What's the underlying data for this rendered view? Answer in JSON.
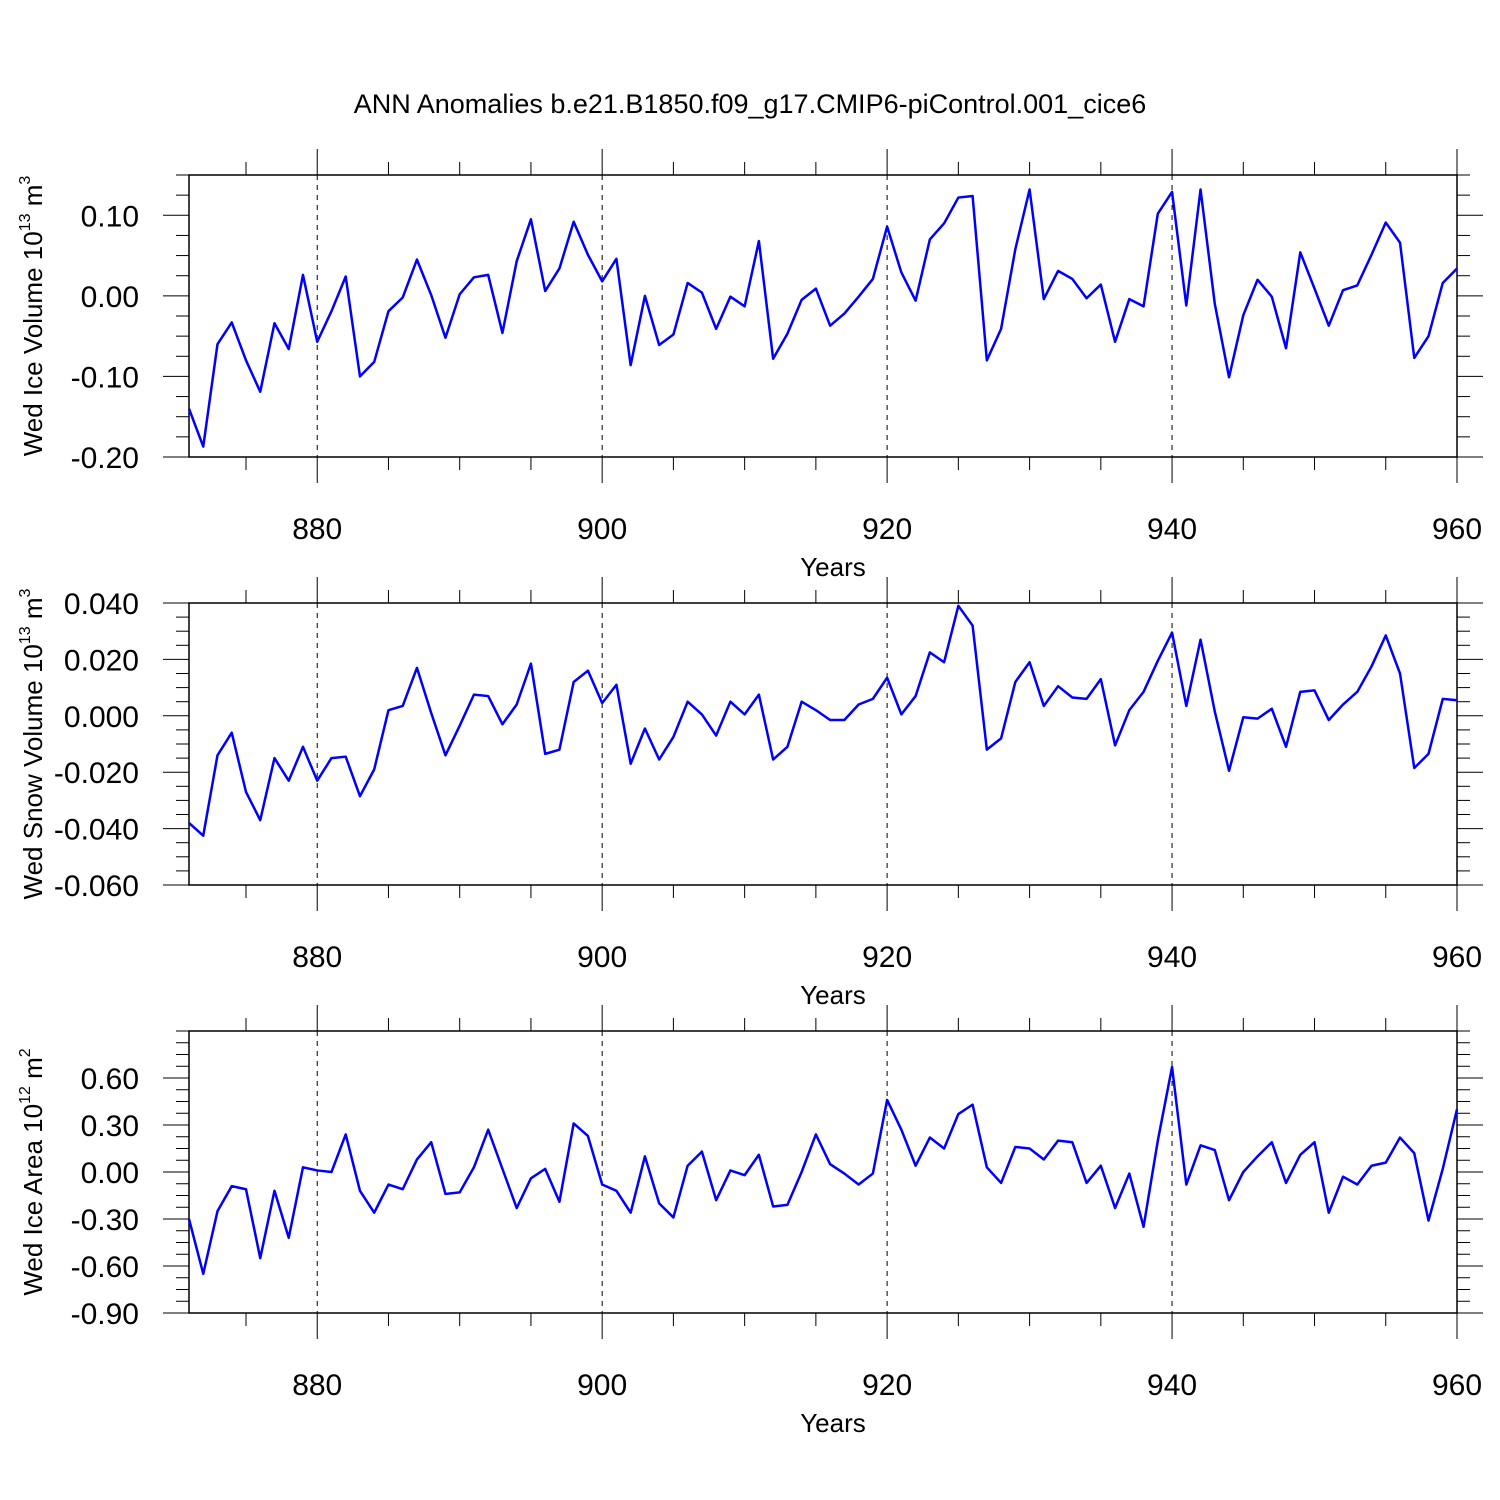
{
  "title": "ANN Anomalies b.e21.B1850.f09_g17.CMIP6-piControl.001_cice6",
  "chart_data": [
    {
      "type": "line",
      "xlabel": "Years",
      "ylabel": {
        "main": "Wed Ice Volume 10",
        "sup": "13",
        "unit": " m",
        "unit_sup": "3"
      },
      "xlim": [
        871,
        960
      ],
      "ylim": [
        -0.2,
        0.15
      ],
      "xticks": [
        880,
        900,
        920,
        940,
        960
      ],
      "xtick_labels": [
        "880",
        "900",
        "920",
        "940",
        "960"
      ],
      "yticks": [
        -0.2,
        -0.1,
        0.0,
        0.1
      ],
      "ytick_labels": [
        "-0.20",
        "-0.10",
        "0.00",
        "0.10"
      ],
      "x_minor_step": 5,
      "y_minor_step": 0.025,
      "vgrid": [
        880,
        900,
        920,
        940
      ],
      "line_color": "#0000ff",
      "x_start": 871,
      "values": [
        -0.14,
        -0.187,
        -0.06,
        -0.033,
        -0.08,
        -0.119,
        -0.034,
        -0.066,
        0.026,
        -0.057,
        -0.019,
        0.024,
        -0.1,
        -0.082,
        -0.019,
        -0.002,
        0.045,
        0.001,
        -0.052,
        0.002,
        0.023,
        0.026,
        -0.046,
        0.043,
        0.095,
        0.006,
        0.034,
        0.092,
        0.051,
        0.018,
        0.046,
        -0.086,
        0.0,
        -0.061,
        -0.048,
        0.016,
        0.004,
        -0.041,
        -0.001,
        -0.013,
        0.068,
        -0.078,
        -0.047,
        -0.005,
        0.009,
        -0.037,
        -0.022,
        -0.001,
        0.021,
        0.086,
        0.029,
        -0.006,
        0.07,
        0.09,
        0.122,
        0.124,
        -0.08,
        -0.041,
        0.058,
        0.132,
        -0.004,
        0.031,
        0.021,
        -0.003,
        0.014,
        -0.057,
        -0.004,
        -0.013,
        0.102,
        0.129,
        -0.012,
        0.132,
        -0.01,
        -0.101,
        -0.024,
        0.02,
        -0.001,
        -0.065,
        0.054,
        0.009,
        -0.037,
        0.007,
        0.013,
        0.051,
        0.091,
        0.066,
        -0.077,
        -0.05,
        0.016,
        0.034
      ]
    },
    {
      "type": "line",
      "xlabel": "Years",
      "ylabel": {
        "main": "Wed Snow Volume 10",
        "sup": "13",
        "unit": " m",
        "unit_sup": "3"
      },
      "xlim": [
        871,
        960
      ],
      "ylim": [
        -0.06,
        0.04
      ],
      "xticks": [
        880,
        900,
        920,
        940,
        960
      ],
      "xtick_labels": [
        "880",
        "900",
        "920",
        "940",
        "960"
      ],
      "yticks": [
        -0.06,
        -0.04,
        -0.02,
        0.0,
        0.02,
        0.04
      ],
      "ytick_labels": [
        "-0.060",
        "-0.040",
        "-0.020",
        "0.000",
        "0.020",
        "0.040"
      ],
      "x_minor_step": 5,
      "y_minor_step": 0.005,
      "vgrid": [
        880,
        900,
        920,
        940
      ],
      "line_color": "#0000ff",
      "x_start": 871,
      "values": [
        -0.038,
        -0.0425,
        -0.014,
        -0.006,
        -0.027,
        -0.037,
        -0.015,
        -0.023,
        -0.011,
        -0.023,
        -0.015,
        -0.0145,
        -0.0285,
        -0.019,
        0.002,
        0.0035,
        0.017,
        0.001,
        -0.014,
        -0.0035,
        0.0075,
        0.007,
        -0.003,
        0.004,
        0.0185,
        -0.0135,
        -0.012,
        0.012,
        0.016,
        0.0045,
        0.011,
        -0.017,
        -0.0045,
        -0.0155,
        -0.0075,
        0.005,
        0.0005,
        -0.007,
        0.005,
        0.0005,
        0.0075,
        -0.0155,
        -0.011,
        0.005,
        0.002,
        -0.0015,
        -0.0015,
        0.004,
        0.006,
        0.0135,
        0.0005,
        0.007,
        0.0225,
        0.019,
        0.039,
        0.032,
        -0.012,
        -0.008,
        0.012,
        0.019,
        0.0035,
        0.0105,
        0.0065,
        0.006,
        0.013,
        -0.0105,
        0.002,
        0.0085,
        0.0195,
        0.0295,
        0.0035,
        0.027,
        0.0015,
        -0.0195,
        -0.0005,
        -0.001,
        0.0025,
        -0.011,
        0.0085,
        0.009,
        -0.0015,
        0.004,
        0.0085,
        0.0175,
        0.0285,
        0.015,
        -0.0185,
        -0.0135,
        0.006,
        0.0055
      ]
    },
    {
      "type": "line",
      "xlabel": "Years",
      "ylabel": {
        "main": "Wed Ice Area 10",
        "sup": "12",
        "unit": " m",
        "unit_sup": "2"
      },
      "xlim": [
        871,
        960
      ],
      "ylim": [
        -0.9,
        0.9
      ],
      "xticks": [
        880,
        900,
        920,
        940,
        960
      ],
      "xtick_labels": [
        "880",
        "900",
        "920",
        "940",
        "960"
      ],
      "yticks": [
        -0.9,
        -0.6,
        -0.3,
        0.0,
        0.3,
        0.6
      ],
      "ytick_labels": [
        "-0.90",
        "-0.60",
        "-0.30",
        "0.00",
        "0.30",
        "0.60"
      ],
      "x_minor_step": 5,
      "y_minor_step": 0.075,
      "vgrid": [
        880,
        900,
        920,
        940
      ],
      "line_color": "#0000ff",
      "x_start": 871,
      "values": [
        -0.3,
        -0.65,
        -0.25,
        -0.09,
        -0.11,
        -0.55,
        -0.12,
        -0.42,
        0.03,
        0.01,
        0.0,
        0.24,
        -0.12,
        -0.26,
        -0.08,
        -0.11,
        0.08,
        0.19,
        -0.14,
        -0.13,
        0.03,
        0.27,
        0.02,
        -0.23,
        -0.04,
        0.02,
        -0.19,
        0.31,
        0.23,
        -0.08,
        -0.12,
        -0.26,
        0.1,
        -0.2,
        -0.29,
        0.04,
        0.13,
        -0.18,
        0.01,
        -0.02,
        0.11,
        -0.22,
        -0.21,
        0.0,
        0.24,
        0.05,
        -0.01,
        -0.08,
        -0.01,
        0.46,
        0.27,
        0.04,
        0.22,
        0.15,
        0.37,
        0.43,
        0.03,
        -0.07,
        0.16,
        0.15,
        0.08,
        0.2,
        0.19,
        -0.07,
        0.04,
        -0.23,
        -0.01,
        -0.35,
        0.2,
        0.67,
        -0.08,
        0.17,
        0.14,
        -0.18,
        0.0,
        0.1,
        0.19,
        -0.07,
        0.11,
        0.19,
        -0.26,
        -0.03,
        -0.08,
        0.04,
        0.06,
        0.22,
        0.12,
        -0.31,
        0.02,
        0.4
      ]
    }
  ]
}
